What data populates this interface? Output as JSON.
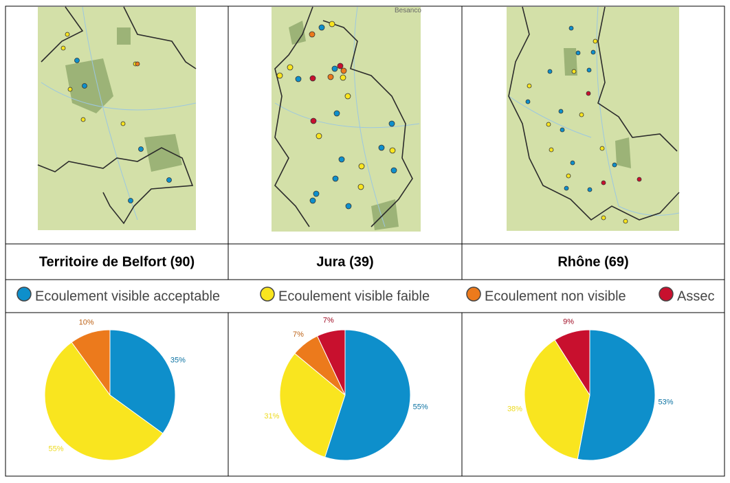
{
  "map_text": "Besanco",
  "legend": [
    {
      "name": "Ecoulement visible acceptable",
      "color": "#0e8fcb"
    },
    {
      "name": "Ecoulement visible faible",
      "color": "#f9e51f"
    },
    {
      "name": "Ecoulement non visible",
      "color": "#ec7a1c"
    },
    {
      "name": "Assec",
      "color": "#c8102e"
    }
  ],
  "chart_data": [
    {
      "type": "pie",
      "title": "Territoire de Belfort (90)",
      "values": [
        35,
        55,
        10,
        0
      ],
      "value_labels": [
        "35%",
        "55%",
        "10%",
        null
      ]
    },
    {
      "type": "pie",
      "title": "Jura (39)",
      "values": [
        55,
        31,
        7,
        7
      ],
      "value_labels": [
        "55%",
        "31%",
        "7%",
        "7%"
      ]
    },
    {
      "type": "pie",
      "title": "Rhône (69)",
      "values": [
        53,
        38,
        0,
        9
      ],
      "value_labels": [
        "53%",
        "38%",
        null,
        "9%"
      ]
    }
  ]
}
